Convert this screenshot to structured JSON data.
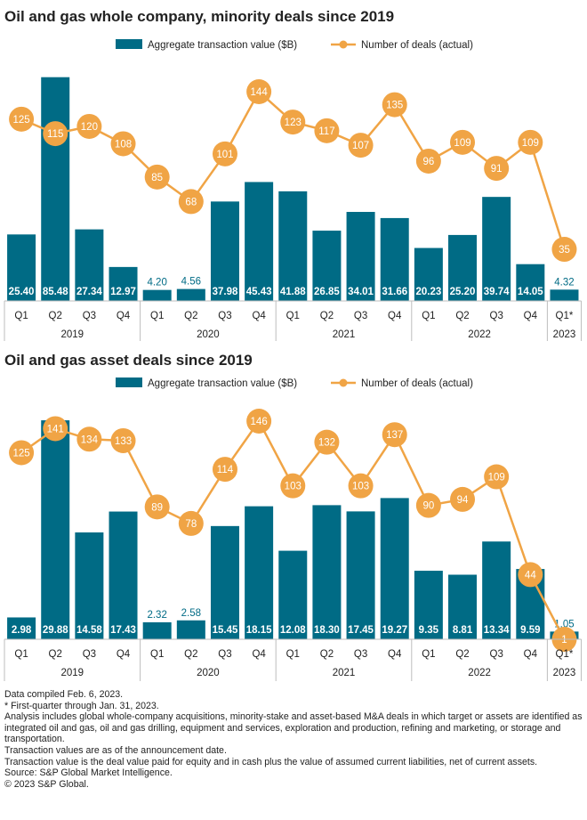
{
  "colors": {
    "bar": "#006b85",
    "line": "#f0a445",
    "axis": "#bdbdbd",
    "text": "#222222"
  },
  "chart_data": [
    {
      "type": "bar+line",
      "title": "Oil and gas whole company, minority deals since 2019",
      "legend": [
        "Aggregate transaction value ($B)",
        "Number of deals (actual)"
      ],
      "legend_position": "top",
      "quarters": [
        "Q1",
        "Q2",
        "Q3",
        "Q4",
        "Q1",
        "Q2",
        "Q3",
        "Q4",
        "Q1",
        "Q2",
        "Q3",
        "Q4",
        "Q1",
        "Q2",
        "Q3",
        "Q4",
        "Q1*"
      ],
      "years": [
        {
          "label": "2019",
          "span": 4
        },
        {
          "label": "2020",
          "span": 4
        },
        {
          "label": "2021",
          "span": 4
        },
        {
          "label": "2022",
          "span": 4
        },
        {
          "label": "2023",
          "span": 1
        }
      ],
      "series": [
        {
          "name": "Aggregate transaction value ($B)",
          "type": "bar",
          "values": [
            25.4,
            85.48,
            27.34,
            12.97,
            4.2,
            4.56,
            37.98,
            45.43,
            41.88,
            26.85,
            34.01,
            31.66,
            20.23,
            25.2,
            39.74,
            14.05,
            4.32
          ]
        },
        {
          "name": "Number of deals (actual)",
          "type": "line",
          "values": [
            125,
            115,
            120,
            108,
            85,
            68,
            101,
            144,
            123,
            117,
            107,
            135,
            96,
            109,
            91,
            109,
            35
          ]
        }
      ],
      "grid": false
    },
    {
      "type": "bar+line",
      "title": "Oil and gas asset deals since 2019",
      "legend": [
        "Aggregate transaction value ($B)",
        "Number of deals (actual)"
      ],
      "legend_position": "top",
      "quarters": [
        "Q1",
        "Q2",
        "Q3",
        "Q4",
        "Q1",
        "Q2",
        "Q3",
        "Q4",
        "Q1",
        "Q2",
        "Q3",
        "Q4",
        "Q1",
        "Q2",
        "Q3",
        "Q4",
        "Q1*"
      ],
      "years": [
        {
          "label": "2019",
          "span": 4
        },
        {
          "label": "2020",
          "span": 4
        },
        {
          "label": "2021",
          "span": 4
        },
        {
          "label": "2022",
          "span": 4
        },
        {
          "label": "2023",
          "span": 1
        }
      ],
      "series": [
        {
          "name": "Aggregate transaction value ($B)",
          "type": "bar",
          "values": [
            2.98,
            29.88,
            14.58,
            17.43,
            2.32,
            2.58,
            15.45,
            18.15,
            12.08,
            18.3,
            17.45,
            19.27,
            9.35,
            8.81,
            13.34,
            9.59,
            1.05
          ]
        },
        {
          "name": "Number of deals (actual)",
          "type": "line",
          "values": [
            125,
            141,
            134,
            133,
            89,
            78,
            114,
            146,
            103,
            132,
            103,
            137,
            90,
            94,
            109,
            44,
            1
          ]
        }
      ],
      "grid": false
    }
  ],
  "notes": [
    "Data compiled Feb. 6,  2023.",
    "* First-quarter through Jan. 31, 2023.",
    "Analysis includes global whole-company acquisitions, minority-stake and asset-based M&A deals in which target or assets are identified as integrated oil and gas, oil and gas drilling, equipment and services, exploration and production, refining and marketing, or storage and transportation.",
    "Transaction values are as of the announcement date.",
    "Transaction value is the deal value paid for equity and in cash plus the value of assumed current liabilities, net of current assets.",
    "Source: S&P Global Market Intelligence.",
    "© 2023 S&P Global."
  ]
}
